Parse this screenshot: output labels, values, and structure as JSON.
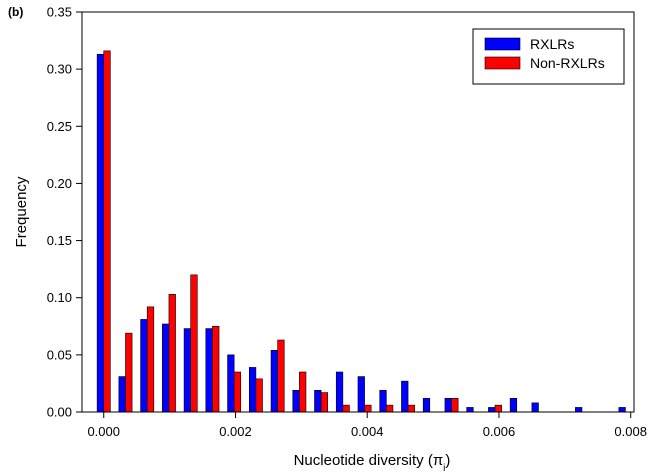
{
  "chart_data": {
    "type": "bar",
    "panel_label": "(b)",
    "xlabel": "Nucleotide diversity (π",
    "xlabel_sub": "i",
    "xlabel_close": ")",
    "ylabel": "Frequency",
    "xlim": [
      -0.00033,
      0.00805
    ],
    "ylim": [
      0,
      0.35
    ],
    "grid": false,
    "legend_position": "top-right",
    "x_ticks": [
      0,
      0.002,
      0.004,
      0.006,
      0.008
    ],
    "x_tick_labels": [
      "0.000",
      "0.002",
      "0.004",
      "0.006",
      "0.008"
    ],
    "y_ticks": [
      0,
      0.05,
      0.1,
      0.15,
      0.2,
      0.25,
      0.3,
      0.35
    ],
    "y_tick_labels": [
      "0.00",
      "0.05",
      "0.10",
      "0.15",
      "0.20",
      "0.25",
      "0.30",
      "0.35"
    ],
    "x": [
      0,
      0.00033,
      0.00066,
      0.00099,
      0.00132,
      0.00165,
      0.00198,
      0.00231,
      0.00264,
      0.00297,
      0.0033,
      0.00363,
      0.00396,
      0.00429,
      0.00462,
      0.00495,
      0.00528,
      0.00561,
      0.00594,
      0.00627,
      0.0066,
      0.00693,
      0.00726,
      0.00759,
      0.00792
    ],
    "series": [
      {
        "name": "RXLRs",
        "color": "#0000ff",
        "values": [
          0.313,
          0.031,
          0.081,
          0.077,
          0.073,
          0.073,
          0.05,
          0.039,
          0.054,
          0.019,
          0.019,
          0.035,
          0.031,
          0.019,
          0.027,
          0.012,
          0.012,
          0.004,
          0.004,
          0.012,
          0.008,
          0,
          0.004,
          0,
          0.004
        ]
      },
      {
        "name": "Non-RXLRs",
        "color": "#ff0000",
        "values": [
          0.316,
          0.069,
          0.092,
          0.103,
          0.12,
          0.075,
          0.035,
          0.029,
          0.063,
          0.035,
          0.017,
          0.006,
          0.006,
          0.006,
          0.006,
          0,
          0.012,
          0,
          0.006,
          0,
          0,
          0,
          0,
          0,
          0
        ]
      }
    ]
  }
}
